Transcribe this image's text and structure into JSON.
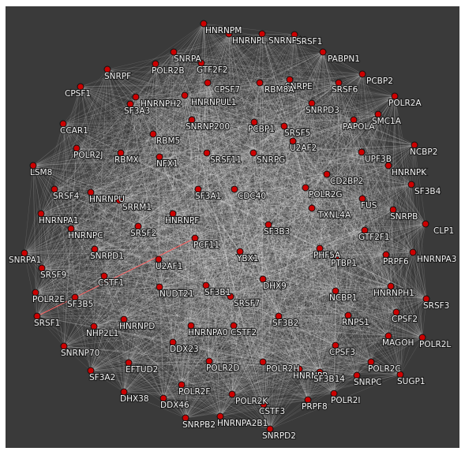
{
  "network": {
    "node_color": "#cc0000",
    "edge_color": "#ffffff",
    "highlight_edge_color": "#ff6666",
    "background": "#3a3a3a",
    "nodes": [
      "HNRNPM",
      "SNRNP40",
      "SRSF1",
      "HNRNPL",
      "SNRPA",
      "POLR2B",
      "GTF2F2",
      "PABPN1",
      "SNRPF",
      "PCBP2",
      "SRSF6",
      "SNRPE",
      "POLR2A",
      "CPSF1",
      "HNRNPH2",
      "HNRNPUL1",
      "CPSF7",
      "RBM8A",
      "SNRPD3",
      "PAPOLA",
      "SMC1A",
      "CCAR1",
      "SF3A3",
      "SNRNP200",
      "PCBP1",
      "SRSF5",
      "RBM5",
      "U2AF2",
      "NCBP2",
      "POLR2J",
      "RBMX",
      "NFX1",
      "SRSF11",
      "SNRPG",
      "UPF3B",
      "HNRNPK",
      "LSM8",
      "CD2BP2",
      "SF3B4",
      "SRSF4",
      "HNRNPU",
      "SRRM1",
      "SF3A1",
      "CDC40",
      "POLR2G",
      "FUS",
      "HNRNPA1",
      "HNRNPF",
      "TXNL4A",
      "SNRPB",
      "CLP1",
      "HNRNPC",
      "SRSF2",
      "SF3B3",
      "GTF2F1",
      "SNRPA1",
      "SNRPD1",
      "PCF11",
      "PHF5A",
      "PRPF6",
      "HNRNPA3",
      "SRSF9",
      "U2AF1",
      "YBX1",
      "PTBP1",
      "POLR2E",
      "CSTF1",
      "HNRNPH1",
      "SF3B5",
      "NUDT21",
      "SF3B1",
      "SRSF7",
      "DHX9",
      "NCBP1",
      "SRSF3",
      "SRSF1",
      "NHP2L1",
      "HNRNPD",
      "CPSF2",
      "RNPS1",
      "SF3B2",
      "POLR2L",
      "SNRNP70",
      "HNRNPA0",
      "CSTF2",
      "MAGOH",
      "CPSF3",
      "EFTUD2",
      "DDX23",
      "POLR2C",
      "POLR2D",
      "POLR2H",
      "HNRNPR",
      "SNRPC",
      "SF3B14",
      "SUGP1",
      "SF3A2",
      "POLR2F",
      "POLR2I",
      "DHX38",
      "DDX46",
      "POLR2K",
      "CSTF3",
      "PRPF8",
      "SNRPB2",
      "HNRNPA2B1",
      "SNRPD2"
    ]
  }
}
